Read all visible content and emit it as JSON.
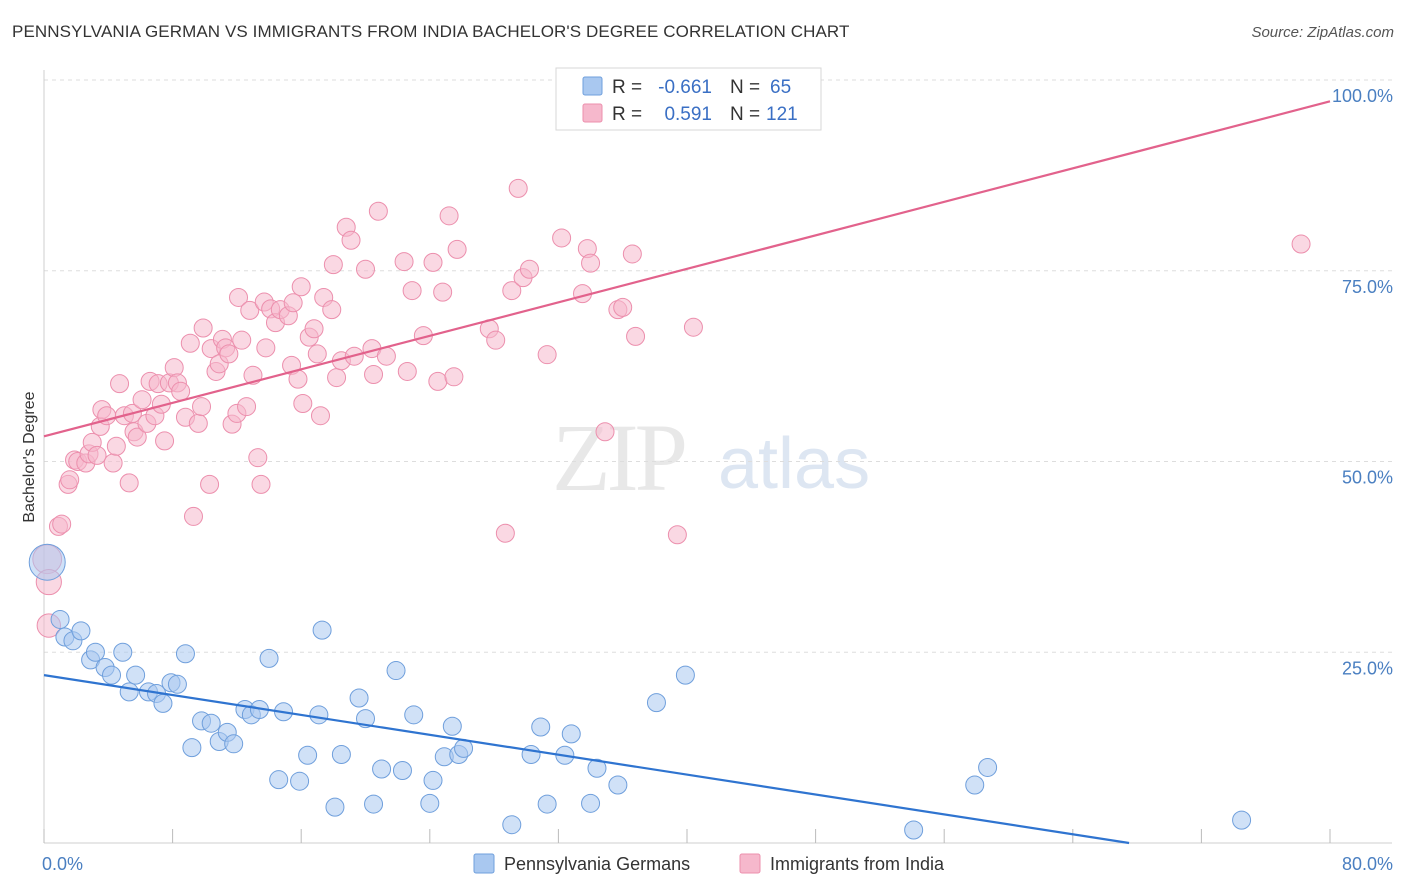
{
  "header": {
    "title": "PENNSYLVANIA GERMAN VS IMMIGRANTS FROM INDIA BACHELOR'S DEGREE CORRELATION CHART",
    "source": "Source: ZipAtlas.com"
  },
  "watermark": {
    "zip": "ZIP",
    "atlas": "atlas"
  },
  "colors": {
    "blue_fill": "#a9c8f0",
    "blue_stroke": "#6f9fdc",
    "blue_line": "#2f74d0",
    "pink_fill": "#f6b8cc",
    "pink_stroke": "#ec8fad",
    "pink_line": "#e2628c",
    "axis_text": "#4a7fc1",
    "grid": "#dddddd"
  },
  "stats": {
    "blue": {
      "r_label": "R =",
      "r_value": "-0.661",
      "n_label": "N =",
      "n_value": "65"
    },
    "pink": {
      "r_label": "R =",
      "r_value": "0.591",
      "n_label": "N =",
      "n_value": "121"
    }
  },
  "chart_data": {
    "type": "scatter",
    "title": "PENNSYLVANIA GERMAN VS IMMIGRANTS FROM INDIA BACHELOR'S DEGREE CORRELATION CHART",
    "xlabel": "",
    "ylabel": "Bachelor's Degree",
    "xlim": [
      0,
      80
    ],
    "ylim": [
      0,
      100
    ],
    "x_tick_labels": [
      "0.0%",
      "80.0%"
    ],
    "y_ticks": [
      {
        "value": 25,
        "label": "25.0%"
      },
      {
        "value": 50,
        "label": "50.0%"
      },
      {
        "value": 75,
        "label": "75.0%"
      },
      {
        "value": 100,
        "label": "100.0%"
      }
    ],
    "legend": [
      "Pennsylvania Germans",
      "Immigrants from India"
    ],
    "series": [
      {
        "name": "Pennsylvania Germans",
        "color": "blue",
        "r": -0.661,
        "n": 65,
        "trend": {
          "x0": 0,
          "y0": 22.0,
          "x1": 67.5,
          "y1": 0
        },
        "points": [
          [
            0.2,
            36.8,
            2.0
          ],
          [
            1.0,
            29.3,
            1
          ],
          [
            1.3,
            27.0,
            1
          ],
          [
            1.8,
            26.5,
            1
          ],
          [
            2.3,
            27.8,
            1
          ],
          [
            2.9,
            24.0,
            1
          ],
          [
            3.2,
            25.0,
            1
          ],
          [
            3.8,
            23.0,
            1
          ],
          [
            4.2,
            22.0,
            1
          ],
          [
            4.9,
            25.0,
            1
          ],
          [
            5.3,
            19.8,
            1
          ],
          [
            5.7,
            22.0,
            1
          ],
          [
            6.5,
            19.8,
            1
          ],
          [
            7.0,
            19.6,
            1
          ],
          [
            7.4,
            18.3,
            1
          ],
          [
            7.9,
            21.0,
            1
          ],
          [
            8.3,
            20.8,
            1
          ],
          [
            8.8,
            24.8,
            1
          ],
          [
            9.2,
            12.5,
            1
          ],
          [
            9.8,
            16.0,
            1
          ],
          [
            10.4,
            15.7,
            1
          ],
          [
            10.9,
            13.3,
            1
          ],
          [
            11.4,
            14.5,
            1
          ],
          [
            11.8,
            13.0,
            1
          ],
          [
            12.5,
            17.5,
            1
          ],
          [
            12.9,
            16.8,
            1
          ],
          [
            13.4,
            17.5,
            1
          ],
          [
            14.0,
            24.2,
            1
          ],
          [
            14.6,
            8.3,
            1
          ],
          [
            14.9,
            17.2,
            1
          ],
          [
            15.9,
            8.1,
            1
          ],
          [
            16.4,
            11.5,
            1
          ],
          [
            17.1,
            16.8,
            1
          ],
          [
            17.3,
            27.9,
            1
          ],
          [
            18.1,
            4.7,
            1
          ],
          [
            18.5,
            11.6,
            1
          ],
          [
            19.6,
            19.0,
            1
          ],
          [
            20.0,
            16.3,
            1
          ],
          [
            20.5,
            5.1,
            1
          ],
          [
            21.0,
            9.7,
            1
          ],
          [
            21.9,
            22.6,
            1
          ],
          [
            22.3,
            9.5,
            1
          ],
          [
            23.0,
            16.8,
            1
          ],
          [
            24.0,
            5.2,
            1
          ],
          [
            24.2,
            8.2,
            1
          ],
          [
            24.9,
            11.3,
            1
          ],
          [
            25.4,
            15.3,
            1
          ],
          [
            25.8,
            11.6,
            1
          ],
          [
            26.1,
            12.4,
            1
          ],
          [
            29.1,
            2.4,
            1
          ],
          [
            30.3,
            11.6,
            1
          ],
          [
            30.9,
            15.2,
            1
          ],
          [
            31.3,
            5.1,
            1
          ],
          [
            32.4,
            11.5,
            1
          ],
          [
            32.8,
            14.3,
            1
          ],
          [
            34.0,
            5.2,
            1
          ],
          [
            34.4,
            9.8,
            1
          ],
          [
            35.7,
            7.6,
            1
          ],
          [
            38.1,
            18.4,
            1
          ],
          [
            39.9,
            22.0,
            1
          ],
          [
            54.1,
            1.7,
            1
          ],
          [
            57.9,
            7.6,
            1
          ],
          [
            58.7,
            9.9,
            1
          ],
          [
            74.5,
            3.0,
            1
          ]
        ]
      },
      {
        "name": "Immigrants from India",
        "color": "pink",
        "r": 0.591,
        "n": 121,
        "trend": {
          "x0": 0,
          "y0": 53.3,
          "x1": 80,
          "y1": 97.2
        },
        "points": [
          [
            0.2,
            37.2,
            1.6
          ],
          [
            0.3,
            34.2,
            1.4
          ],
          [
            0.3,
            28.5,
            1.3
          ],
          [
            0.9,
            41.5,
            1
          ],
          [
            1.1,
            41.8,
            1
          ],
          [
            1.5,
            47.0,
            1
          ],
          [
            1.6,
            47.6,
            1
          ],
          [
            1.9,
            50.2,
            1
          ],
          [
            2.1,
            50.0,
            1
          ],
          [
            2.6,
            49.8,
            1
          ],
          [
            2.8,
            51.0,
            1
          ],
          [
            3.0,
            52.5,
            1
          ],
          [
            3.3,
            50.8,
            1
          ],
          [
            3.5,
            54.6,
            1
          ],
          [
            3.6,
            56.8,
            1
          ],
          [
            3.9,
            56.0,
            1
          ],
          [
            4.3,
            49.8,
            1
          ],
          [
            4.5,
            52.0,
            1
          ],
          [
            4.7,
            60.2,
            1
          ],
          [
            5.0,
            56.0,
            1
          ],
          [
            5.3,
            47.2,
            1
          ],
          [
            5.5,
            56.3,
            1
          ],
          [
            5.6,
            53.9,
            1
          ],
          [
            5.8,
            53.2,
            1
          ],
          [
            6.1,
            58.1,
            1
          ],
          [
            6.4,
            55.0,
            1
          ],
          [
            6.6,
            60.5,
            1
          ],
          [
            6.9,
            56.0,
            1
          ],
          [
            7.1,
            60.2,
            1
          ],
          [
            7.3,
            57.5,
            1
          ],
          [
            7.5,
            52.7,
            1
          ],
          [
            7.8,
            60.3,
            1
          ],
          [
            8.1,
            62.3,
            1
          ],
          [
            8.3,
            60.3,
            1
          ],
          [
            8.5,
            59.2,
            1
          ],
          [
            8.8,
            55.8,
            1
          ],
          [
            9.1,
            65.5,
            1
          ],
          [
            9.3,
            42.8,
            1
          ],
          [
            9.6,
            55.0,
            1
          ],
          [
            9.8,
            57.2,
            1
          ],
          [
            9.9,
            67.5,
            1
          ],
          [
            10.3,
            47.0,
            1
          ],
          [
            10.4,
            64.8,
            1
          ],
          [
            10.7,
            61.8,
            1
          ],
          [
            10.9,
            62.8,
            1
          ],
          [
            11.1,
            66.0,
            1
          ],
          [
            11.3,
            64.9,
            1
          ],
          [
            11.5,
            64.1,
            1
          ],
          [
            11.7,
            54.9,
            1
          ],
          [
            12.0,
            56.3,
            1
          ],
          [
            12.1,
            71.5,
            1
          ],
          [
            12.3,
            65.9,
            1
          ],
          [
            12.6,
            57.2,
            1
          ],
          [
            12.8,
            69.8,
            1
          ],
          [
            13.0,
            61.3,
            1
          ],
          [
            13.3,
            50.5,
            1
          ],
          [
            13.5,
            47.0,
            1
          ],
          [
            13.7,
            70.9,
            1
          ],
          [
            13.8,
            64.9,
            1
          ],
          [
            14.1,
            70.0,
            1
          ],
          [
            14.4,
            68.2,
            1
          ],
          [
            14.7,
            69.9,
            1
          ],
          [
            15.2,
            69.1,
            1
          ],
          [
            15.4,
            62.6,
            1
          ],
          [
            15.5,
            70.8,
            1
          ],
          [
            15.8,
            60.8,
            1
          ],
          [
            16.0,
            72.9,
            1
          ],
          [
            16.1,
            57.6,
            1
          ],
          [
            16.5,
            66.3,
            1
          ],
          [
            16.8,
            67.4,
            1
          ],
          [
            17.0,
            64.1,
            1
          ],
          [
            17.2,
            56.0,
            1
          ],
          [
            17.4,
            71.5,
            1
          ],
          [
            17.9,
            69.9,
            1
          ],
          [
            18.0,
            75.8,
            1
          ],
          [
            18.2,
            61.0,
            1
          ],
          [
            18.5,
            63.2,
            1
          ],
          [
            18.8,
            80.7,
            1
          ],
          [
            19.1,
            79.0,
            1
          ],
          [
            19.3,
            63.8,
            1
          ],
          [
            20.0,
            75.2,
            1
          ],
          [
            20.4,
            64.8,
            1
          ],
          [
            20.5,
            61.4,
            1
          ],
          [
            20.8,
            82.8,
            1
          ],
          [
            21.3,
            63.8,
            1
          ],
          [
            22.4,
            76.2,
            1
          ],
          [
            22.6,
            61.8,
            1
          ],
          [
            22.9,
            72.4,
            1
          ],
          [
            23.6,
            66.5,
            1
          ],
          [
            24.2,
            76.1,
            1
          ],
          [
            24.5,
            60.5,
            1
          ],
          [
            24.8,
            72.2,
            1
          ],
          [
            25.2,
            82.2,
            1
          ],
          [
            25.5,
            61.1,
            1
          ],
          [
            25.7,
            77.8,
            1
          ],
          [
            27.7,
            67.4,
            1
          ],
          [
            28.1,
            65.9,
            1
          ],
          [
            28.7,
            40.6,
            1
          ],
          [
            29.1,
            72.4,
            1
          ],
          [
            29.5,
            85.8,
            1
          ],
          [
            29.8,
            74.1,
            1
          ],
          [
            30.2,
            75.2,
            1
          ],
          [
            31.3,
            64.0,
            1
          ],
          [
            32.2,
            79.3,
            1
          ],
          [
            33.5,
            72.0,
            1
          ],
          [
            33.8,
            77.9,
            1
          ],
          [
            34.0,
            76.0,
            1
          ],
          [
            34.9,
            53.9,
            1
          ],
          [
            35.7,
            69.9,
            1
          ],
          [
            36.0,
            70.2,
            1
          ],
          [
            36.6,
            77.2,
            1
          ],
          [
            36.8,
            66.4,
            1
          ],
          [
            39.4,
            40.4,
            1
          ],
          [
            40.4,
            67.6,
            1
          ],
          [
            78.2,
            78.5,
            1
          ]
        ]
      }
    ]
  }
}
